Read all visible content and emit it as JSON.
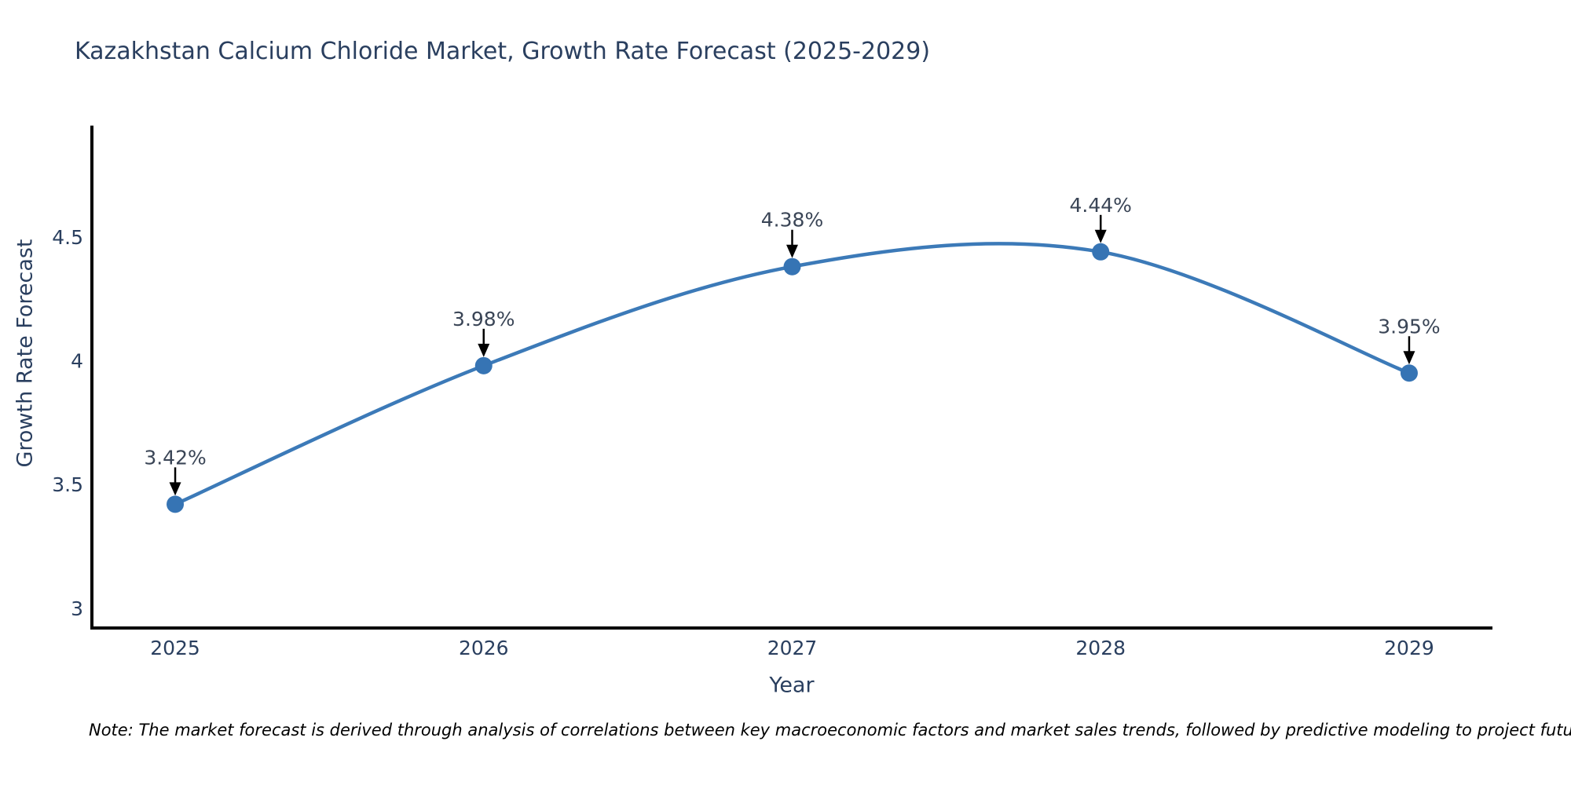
{
  "title": "Kazakhstan Calcium Chloride Market, Growth Rate Forecast (2025-2029)",
  "note": "Note: The market forecast is derived through analysis of correlations between key macroeconomic factors and market sales trends, followed by predictive modeling to project future sales",
  "chart_data": {
    "type": "line",
    "title": "Kazakhstan Calcium Chloride Market, Growth Rate Forecast (2025-2029)",
    "x": [
      2025,
      2026,
      2027,
      2028,
      2029
    ],
    "values": [
      3.42,
      3.98,
      4.38,
      4.44,
      3.95
    ],
    "point_labels": [
      "3.42%",
      "3.98%",
      "4.38%",
      "4.44%",
      "3.95%"
    ],
    "xlabel": "Year",
    "ylabel": "Growth Rate Forecast",
    "xtick_labels": [
      "2025",
      "2026",
      "2027",
      "2028",
      "2029"
    ],
    "yticks": [
      3,
      3.5,
      4,
      4.5
    ],
    "ytick_labels": [
      "3",
      "3.5",
      "4",
      "4.5"
    ],
    "xlim": [
      2024.73,
      2029.27
    ],
    "ylim": [
      2.92,
      4.95
    ],
    "line_shape": "spline",
    "grid": false,
    "legend": "none",
    "colors": {
      "line": "#3c7ab8",
      "marker": "#3674b4",
      "axis": "#000000",
      "tick": "#2a3f5f",
      "annotation": "#3a4556"
    }
  }
}
